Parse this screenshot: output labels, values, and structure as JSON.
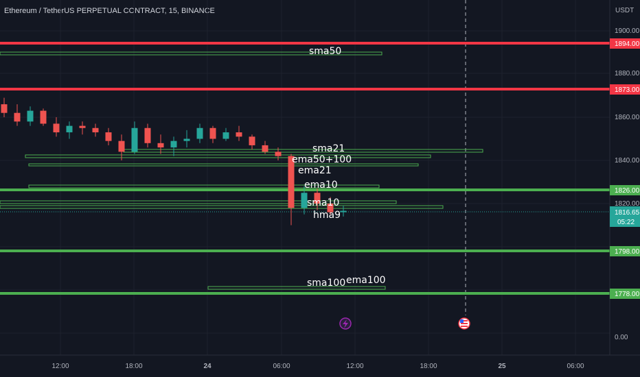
{
  "header": {
    "title": "Ethereum / TetherUS PERPETUAL CONTRACT, 15, BINANCE"
  },
  "axis": {
    "currency": "USDT",
    "y_ticks": [
      "1900.00",
      "1880.00",
      "1860.00",
      "1840.00",
      "1820.00",
      "0.00"
    ],
    "x_ticks": [
      "12:00",
      "18:00",
      "24",
      "06:00",
      "12:00",
      "18:00",
      "25",
      "06:00"
    ]
  },
  "price_badges": {
    "r1": "1894.00",
    "r2": "1873.00",
    "s1": "1826.00",
    "s2": "1798.00",
    "s3": "1778.00",
    "last_price": "1816.65",
    "countdown": "05:22"
  },
  "indicator_labels": {
    "sma50": "sma50",
    "sma21": "sma21",
    "ema50_100": "ema50+100",
    "ema21": "ema21",
    "ema10": "ema10",
    "sma10": "sma10",
    "hma9": "hma9",
    "sma100": "sma100",
    "ema100": "ema100"
  },
  "colors": {
    "background": "#131722",
    "resistance": "#f23645",
    "support": "#4caf50",
    "candle_up": "#26a69a",
    "candle_down": "#ef5350",
    "indicator_box": "#4caf50",
    "last_price_badge": "#26a69a"
  },
  "chart_data": {
    "type": "candlestick",
    "symbol": "Ethereum / TetherUS PERPETUAL CONTRACT",
    "timeframe": "15",
    "exchange": "BINANCE",
    "last_price": 1816.65,
    "horizontal_levels": [
      {
        "price": 1894.0,
        "kind": "resistance"
      },
      {
        "price": 1873.0,
        "kind": "resistance"
      },
      {
        "price": 1826.0,
        "kind": "support"
      },
      {
        "price": 1798.0,
        "kind": "support"
      },
      {
        "price": 1778.0,
        "kind": "support"
      }
    ],
    "candles": [
      {
        "t": "08:00",
        "o": 1866,
        "h": 1869,
        "l": 1860,
        "c": 1862
      },
      {
        "t": "09:00",
        "o": 1862,
        "h": 1866,
        "l": 1856,
        "c": 1858
      },
      {
        "t": "10:00",
        "o": 1858,
        "h": 1865,
        "l": 1856,
        "c": 1863
      },
      {
        "t": "11:00",
        "o": 1863,
        "h": 1864,
        "l": 1856,
        "c": 1857
      },
      {
        "t": "12:00",
        "o": 1857,
        "h": 1860,
        "l": 1851,
        "c": 1853
      },
      {
        "t": "13:00",
        "o": 1853,
        "h": 1858,
        "l": 1850,
        "c": 1856
      },
      {
        "t": "14:00",
        "o": 1856,
        "h": 1858,
        "l": 1852,
        "c": 1855
      },
      {
        "t": "15:00",
        "o": 1855,
        "h": 1857,
        "l": 1851,
        "c": 1853
      },
      {
        "t": "16:00",
        "o": 1853,
        "h": 1855,
        "l": 1847,
        "c": 1849
      },
      {
        "t": "17:00",
        "o": 1849,
        "h": 1852,
        "l": 1840,
        "c": 1844
      },
      {
        "t": "18:00",
        "o": 1844,
        "h": 1858,
        "l": 1843,
        "c": 1855
      },
      {
        "t": "19:00",
        "o": 1855,
        "h": 1857,
        "l": 1846,
        "c": 1848
      },
      {
        "t": "20:00",
        "o": 1848,
        "h": 1852,
        "l": 1843,
        "c": 1846
      },
      {
        "t": "21:00",
        "o": 1846,
        "h": 1851,
        "l": 1842,
        "c": 1849
      },
      {
        "t": "22:00",
        "o": 1849,
        "h": 1854,
        "l": 1846,
        "c": 1850
      },
      {
        "t": "23:00",
        "o": 1850,
        "h": 1857,
        "l": 1848,
        "c": 1855
      },
      {
        "t": "00:00",
        "o": 1855,
        "h": 1856,
        "l": 1848,
        "c": 1850
      },
      {
        "t": "01:00",
        "o": 1850,
        "h": 1855,
        "l": 1849,
        "c": 1853
      },
      {
        "t": "02:00",
        "o": 1853,
        "h": 1856,
        "l": 1849,
        "c": 1851
      },
      {
        "t": "03:00",
        "o": 1851,
        "h": 1852,
        "l": 1845,
        "c": 1847
      },
      {
        "t": "04:00",
        "o": 1847,
        "h": 1849,
        "l": 1843,
        "c": 1844
      },
      {
        "t": "05:00",
        "o": 1844,
        "h": 1846,
        "l": 1840,
        "c": 1842
      },
      {
        "t": "06:00",
        "o": 1842,
        "h": 1843,
        "l": 1810,
        "c": 1818
      },
      {
        "t": "07:00",
        "o": 1818,
        "h": 1828,
        "l": 1815,
        "c": 1825
      },
      {
        "t": "08:00",
        "o": 1825,
        "h": 1827,
        "l": 1817,
        "c": 1820
      },
      {
        "t": "09:00",
        "o": 1820,
        "h": 1823,
        "l": 1815,
        "c": 1816
      },
      {
        "t": "10:00",
        "o": 1816,
        "h": 1819,
        "l": 1814,
        "c": 1816.65
      }
    ]
  }
}
